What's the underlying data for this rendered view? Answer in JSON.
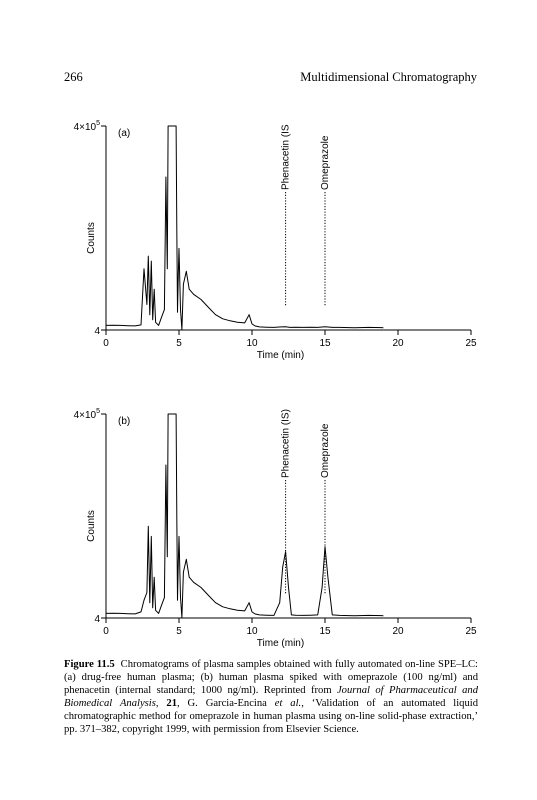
{
  "running_head": {
    "page_number": "266",
    "title": "Multidimensional Chromatography"
  },
  "chart_data": [
    {
      "type": "line",
      "panel_label": "(a)",
      "title": "",
      "xlabel": "Time (min)",
      "ylabel": "Counts",
      "xlim": [
        0,
        25
      ],
      "ylim": [
        4,
        400000
      ],
      "y_tick_labels": [
        {
          "value": 400000,
          "label": "4×10",
          "superscript": "5"
        },
        {
          "value": 4,
          "label": "4",
          "superscript": ""
        }
      ],
      "x_ticks": [
        0,
        5,
        10,
        15,
        20,
        25
      ],
      "grid": false,
      "legend": "none",
      "annotations": [
        {
          "text": "Phenacetin (IS",
          "x": 12.3
        },
        {
          "text": "Omeprazole",
          "x": 15.0
        }
      ],
      "series": [
        {
          "name": "",
          "x": [
            0,
            0.5,
            1,
            1.5,
            2,
            2.4,
            2.6,
            2.8,
            2.9,
            3.0,
            3.1,
            3.2,
            3.3,
            3.4,
            3.6,
            3.8,
            4.0,
            4.1,
            4.2,
            4.25,
            4.3,
            4.4,
            4.5,
            4.6,
            4.7,
            4.8,
            4.85,
            4.9,
            4.95,
            5.0,
            5.1,
            5.2,
            5.3,
            5.5,
            5.7,
            6.0,
            6.5,
            7.0,
            7.5,
            8,
            8.5,
            9,
            9.5,
            9.8,
            10.0,
            10.2,
            10.5,
            11,
            11.5,
            12,
            12.3,
            12.6,
            13,
            13.5,
            14,
            14.5,
            15.0,
            15.5,
            16,
            17,
            18,
            19
          ],
          "y": [
            9000,
            9500,
            9000,
            8500,
            8000,
            10000,
            120000,
            50000,
            145000,
            30000,
            135000,
            20000,
            80000,
            15000,
            9000,
            25000,
            40000,
            300000,
            120000,
            400000,
            400000,
            400000,
            400000,
            400000,
            400000,
            400000,
            200000,
            35000,
            110000,
            160000,
            40000,
            1000,
            90000,
            115000,
            80000,
            70000,
            60000,
            45000,
            30000,
            22000,
            18000,
            15000,
            14000,
            30000,
            12000,
            8000,
            6000,
            5500,
            5000,
            6000,
            6500,
            5000,
            5500,
            5000,
            5500,
            5000,
            6500,
            5000,
            5000,
            4500,
            5000,
            4500
          ]
        }
      ]
    },
    {
      "type": "line",
      "panel_label": "(b)",
      "title": "",
      "xlabel": "Time (min)",
      "ylabel": "Counts",
      "xlim": [
        0,
        25
      ],
      "ylim": [
        4,
        400000
      ],
      "y_tick_labels": [
        {
          "value": 400000,
          "label": "4×10",
          "superscript": "5"
        },
        {
          "value": 4,
          "label": "4",
          "superscript": ""
        }
      ],
      "x_ticks": [
        0,
        5,
        10,
        15,
        20,
        25
      ],
      "grid": false,
      "legend": "none",
      "annotations": [
        {
          "text": "Phenacetin (IS)",
          "x": 12.3
        },
        {
          "text": "Omeprazole",
          "x": 15.0
        }
      ],
      "series": [
        {
          "name": "",
          "x": [
            0,
            0.5,
            1,
            1.5,
            2,
            2.4,
            2.6,
            2.8,
            2.9,
            3.0,
            3.1,
            3.2,
            3.3,
            3.4,
            3.6,
            3.8,
            4.0,
            4.1,
            4.2,
            4.25,
            4.3,
            4.4,
            4.5,
            4.6,
            4.7,
            4.8,
            4.85,
            4.9,
            4.95,
            5.0,
            5.1,
            5.2,
            5.3,
            5.5,
            5.7,
            6.0,
            6.5,
            7.0,
            7.5,
            8,
            8.5,
            9,
            9.5,
            9.8,
            10.0,
            10.2,
            10.5,
            11,
            11.5,
            11.9,
            12.1,
            12.3,
            12.5,
            12.7,
            13,
            13.5,
            14,
            14.5,
            14.8,
            15.0,
            15.2,
            15.5,
            16,
            17,
            18,
            19
          ],
          "y": [
            9000,
            9500,
            9000,
            8500,
            8000,
            12000,
            35000,
            50000,
            180000,
            30000,
            160000,
            20000,
            80000,
            15000,
            9000,
            25000,
            40000,
            300000,
            120000,
            400000,
            400000,
            400000,
            400000,
            400000,
            400000,
            400000,
            200000,
            35000,
            110000,
            160000,
            40000,
            1000,
            90000,
            115000,
            80000,
            70000,
            60000,
            45000,
            30000,
            22000,
            18000,
            15000,
            14000,
            30000,
            12000,
            8000,
            6000,
            5500,
            5000,
            30000,
            100000,
            130000,
            60000,
            6000,
            5500,
            5000,
            5500,
            6000,
            60000,
            140000,
            80000,
            6000,
            5000,
            4500,
            5000,
            4500
          ]
        }
      ]
    }
  ],
  "caption": {
    "label": "Figure 11.5",
    "text_1": "Chromatograms of plasma samples obtained with fully automated on-line SPE–LC: (a) drug-free human plasma; (b) human plasma spiked with omeprazole (100 ng/ml) and phenacetin (internal standard; 1000 ng/ml). Reprinted from ",
    "journal": "Journal of Pharmaceutical and Biomedical Analysis",
    "text_2": ", ",
    "volume": "21",
    "text_3": ", G. Garcia-Encina ",
    "et_al": "et al.",
    "text_4": ", ‘Validation of an automated liquid chromatographic method for omeprazole in human plasma using on-line solid-phase extraction,’ pp. 371–382, copyright 1999, with permission from Elsevier Science."
  }
}
